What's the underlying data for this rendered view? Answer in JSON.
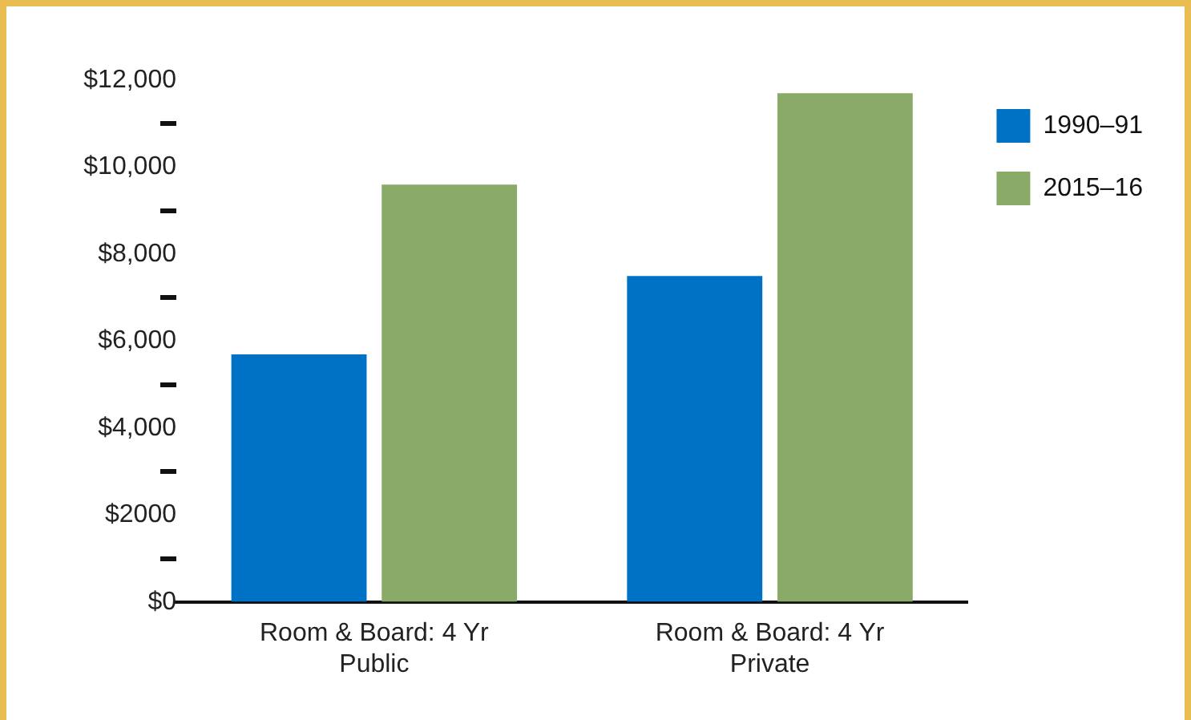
{
  "chart_data": {
    "type": "bar",
    "categories": [
      "Room & Board: 4 Yr Public",
      "Room & Board: 4 Yr Private"
    ],
    "series": [
      {
        "name": "1990–91",
        "color": "#0072c6",
        "values": [
          5700,
          7500
        ]
      },
      {
        "name": "2015–16",
        "color": "#8aab67",
        "values": [
          9600,
          11700
        ]
      }
    ],
    "ylim": [
      0,
      12000
    ],
    "yticks": [
      {
        "value": 0,
        "label": "$0"
      },
      {
        "value": 1000,
        "label": null
      },
      {
        "value": 2000,
        "label": "$2000"
      },
      {
        "value": 3000,
        "label": null
      },
      {
        "value": 4000,
        "label": "$4,000"
      },
      {
        "value": 5000,
        "label": null
      },
      {
        "value": 6000,
        "label": "$6,000"
      },
      {
        "value": 7000,
        "label": null
      },
      {
        "value": 8000,
        "label": "$8,000"
      },
      {
        "value": 9000,
        "label": null
      },
      {
        "value": 10000,
        "label": "$10,000"
      },
      {
        "value": 11000,
        "label": null
      },
      {
        "value": 12000,
        "label": "$12,000"
      }
    ],
    "grid": false,
    "legend": "top right"
  }
}
